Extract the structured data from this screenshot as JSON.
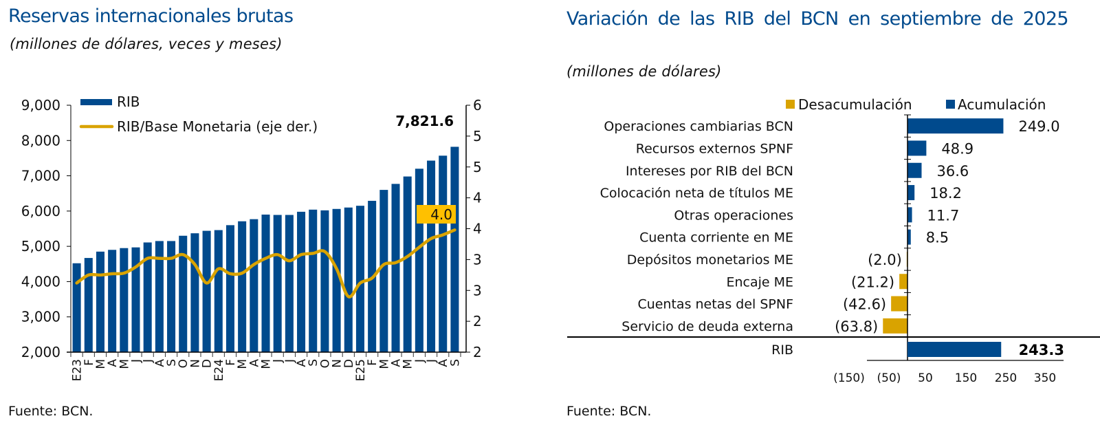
{
  "chart_data": [
    {
      "type": "bar+line",
      "title": "Reservas internacionales brutas",
      "subtitle": "(millones de dólares, veces y meses)",
      "source": "Fuente: BCN.",
      "categories": [
        "E23",
        "F",
        "M",
        "A",
        "M",
        "J",
        "J",
        "A",
        "S",
        "O",
        "N",
        "D",
        "E24",
        "F",
        "M",
        "A",
        "M",
        "J",
        "J",
        "A",
        "S",
        "O",
        "N",
        "D",
        "E25",
        "F",
        "M",
        "A",
        "M",
        "J",
        "J",
        "A",
        "S"
      ],
      "series": [
        {
          "name": "RIB",
          "axis": "left",
          "kind": "bar",
          "color": "#004a8d",
          "values": [
            4520,
            4670,
            4850,
            4900,
            4950,
            4970,
            5110,
            5150,
            5150,
            5300,
            5370,
            5440,
            5460,
            5600,
            5710,
            5770,
            5900,
            5890,
            5890,
            5980,
            6040,
            6020,
            6060,
            6100,
            6150,
            6290,
            6600,
            6770,
            6980,
            7200,
            7430,
            7570,
            7821.6
          ]
        },
        {
          "name": "RIB/Base Monetaria (eje der.)",
          "axis": "right",
          "kind": "line",
          "color": "#d9a300",
          "values": [
            3.12,
            3.25,
            3.25,
            3.27,
            3.28,
            3.38,
            3.52,
            3.52,
            3.52,
            3.58,
            3.42,
            3.12,
            3.35,
            3.27,
            3.28,
            3.42,
            3.52,
            3.58,
            3.48,
            3.58,
            3.6,
            3.63,
            3.35,
            2.9,
            3.12,
            3.2,
            3.42,
            3.45,
            3.55,
            3.7,
            3.84,
            3.9,
            3.98
          ]
        }
      ],
      "annotations": {
        "last_bar_label": "7,821.6",
        "last_line_label": "4.0",
        "line_label_bg": "#ffc000"
      },
      "yaxis_left": {
        "range": [
          2000,
          9000
        ],
        "ticks": [
          "2,000",
          "3,000",
          "4,000",
          "5,000",
          "6,000",
          "7,000",
          "8,000",
          "9,000"
        ],
        "tick_values": [
          2000,
          3000,
          4000,
          5000,
          6000,
          7000,
          8000,
          9000
        ]
      },
      "yaxis_right": {
        "range": [
          2.0,
          6.0
        ],
        "ticks": [
          "2.0",
          "2.5",
          "3.0",
          "3.5",
          "4.0",
          "4.5",
          "5.0",
          "5.5",
          "6.0"
        ],
        "tick_values": [
          2.0,
          2.5,
          3.0,
          3.5,
          4.0,
          4.5,
          5.0,
          5.5,
          6.0
        ]
      },
      "legend": {
        "placement": "top-left",
        "items": [
          "RIB",
          "RIB/Base Monetaria (eje der.)"
        ]
      },
      "grid": false
    },
    {
      "type": "bar",
      "orientation": "horizontal",
      "title": "Variación de las RIB del BCN en septiembre de 2025",
      "subtitle": "(millones de dólares)",
      "source": "Fuente: BCN.",
      "categories": [
        "Operaciones cambiarias BCN",
        "Recursos externos SPNF",
        "Intereses por RIB del BCN",
        "Colocación neta de títulos ME",
        "Otras operaciones",
        "Cuenta corriente en ME",
        "Depósitos monetarios ME",
        "Encaje ME",
        "Cuentas netas del SPNF",
        "Servicio de deuda externa"
      ],
      "values": [
        249.0,
        48.9,
        36.6,
        18.2,
        11.7,
        8.5,
        -2.0,
        -21.2,
        -42.6,
        -63.8
      ],
      "value_labels": [
        "249.0",
        "48.9",
        "36.6",
        "18.2",
        "11.7",
        "8.5",
        "(2.0)",
        "(21.2)",
        "(42.6)",
        "(63.8)"
      ],
      "total": {
        "label": "RIB",
        "value": 243.3,
        "value_label": "243.3"
      },
      "legend": {
        "placement": "top-right",
        "items": [
          {
            "name": "Desacumulación",
            "color": "#d9a300"
          },
          {
            "name": "Acumulación",
            "color": "#004a8d"
          }
        ]
      },
      "xaxis": {
        "ticks": [
          "(150)",
          "(50)",
          "50",
          "150",
          "250",
          "350"
        ]
      },
      "grid": false
    }
  ]
}
